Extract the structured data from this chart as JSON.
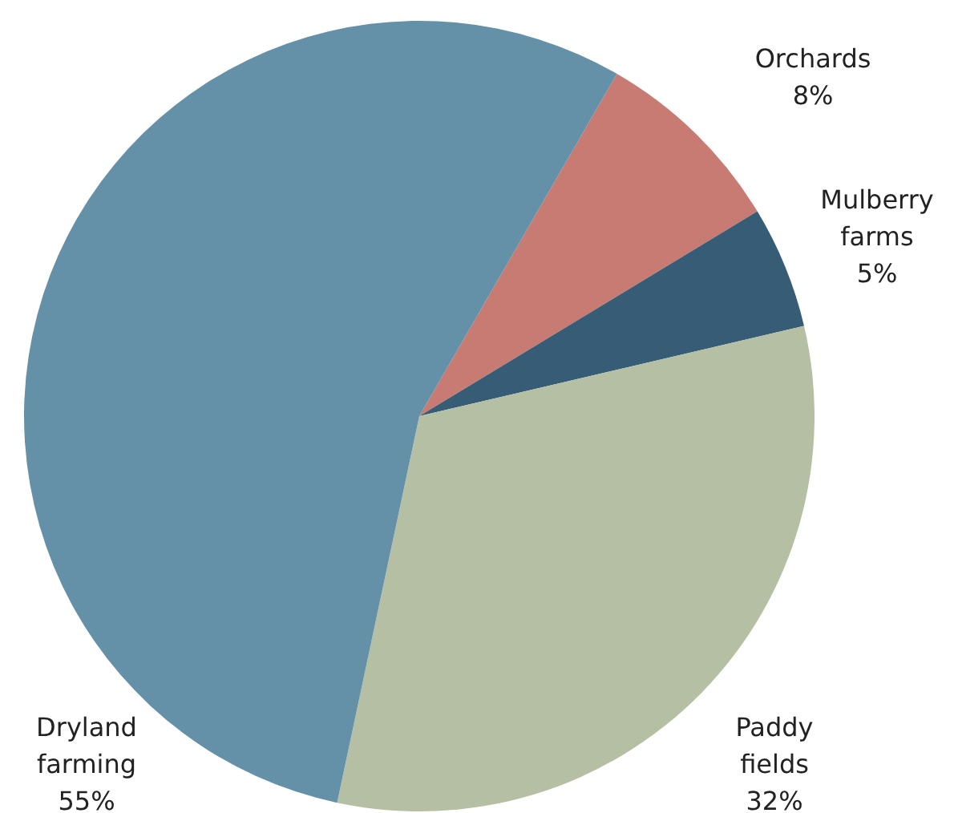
{
  "chart_data": {
    "type": "pie",
    "categories": [
      "Orchards",
      "Mulberry farms",
      "Paddy fields",
      "Dryland farming"
    ],
    "values": [
      8,
      5,
      32,
      55
    ],
    "colors": [
      "#c87b73",
      "#375d76",
      "#b5bfa3",
      "#6490a8"
    ],
    "value_labels": [
      "8%",
      "5%",
      "32%",
      "55%"
    ],
    "legend": false
  }
}
